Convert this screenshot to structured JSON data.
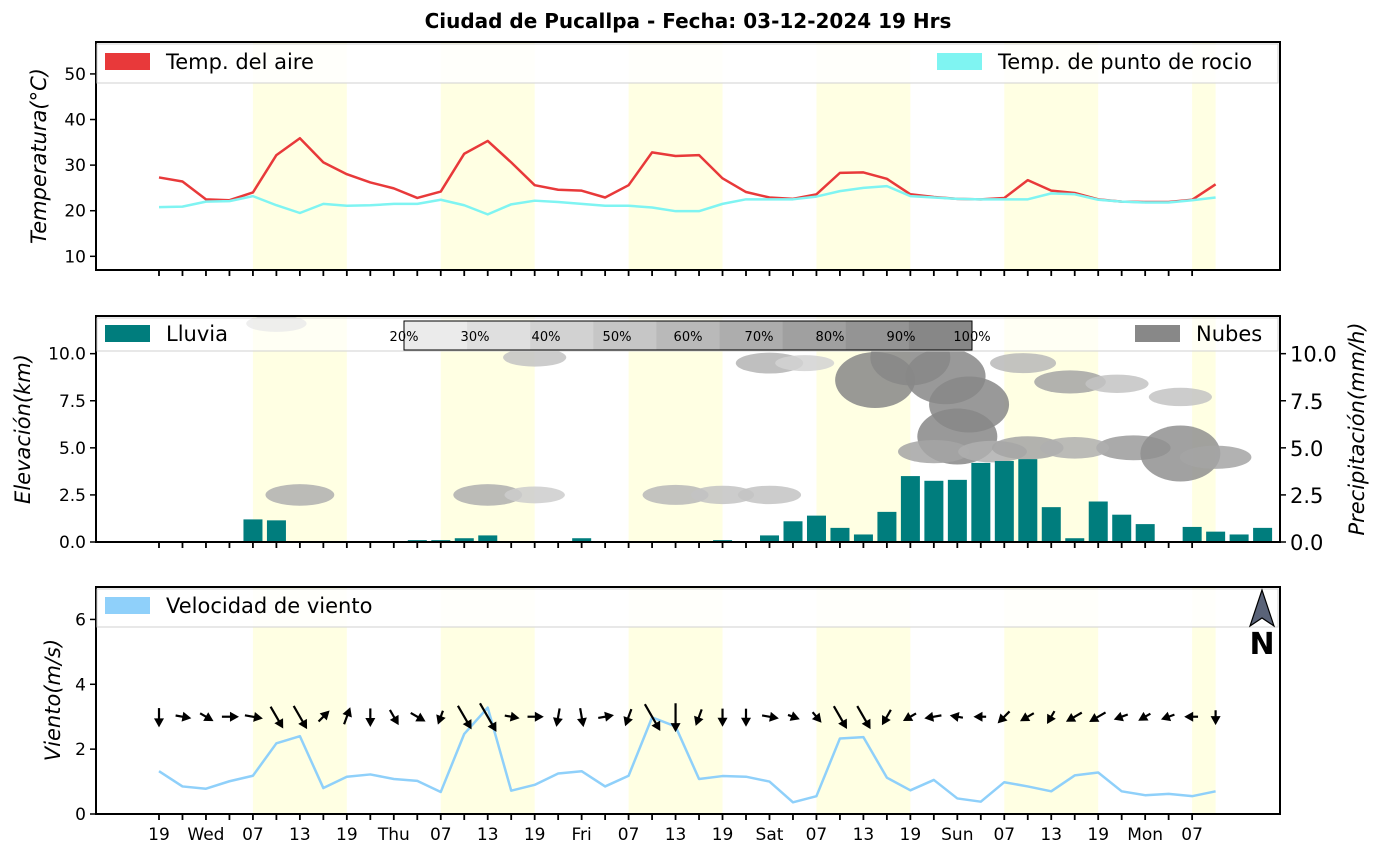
{
  "title": "Ciudad de Pucallpa   -   Fecha: 03-12-2024 19 Hrs",
  "colors": {
    "air_temp": "#e8393a",
    "dew_point": "#7ff4f2",
    "rain": "#007d7d",
    "clouds": "#888888",
    "wind": "#8fd0fa",
    "daylight_band": "#ffffe3",
    "north_arrow": "#5a6378"
  },
  "north_label": "N",
  "chart_data": [
    {
      "type": "line",
      "panel": "temperature",
      "ylabel": "Temperatura(°C)",
      "ylim": [
        7,
        57
      ],
      "yticks": [
        10,
        20,
        30,
        40,
        50
      ],
      "x": [
        0,
        1,
        2,
        3,
        4,
        5,
        6,
        7,
        8,
        9,
        10,
        11,
        12,
        13,
        14,
        15,
        16,
        17,
        18,
        19,
        20,
        21,
        22,
        23,
        24,
        25,
        26,
        27,
        28,
        29,
        30,
        31,
        32,
        33,
        34,
        35,
        36,
        37,
        38,
        39,
        40,
        41,
        42,
        43,
        44,
        45
      ],
      "legend": [
        "Temp. del aire",
        "Temp. de punto de rocio"
      ],
      "series": [
        {
          "name": "Temp. del aire",
          "values": [
            27.3,
            26.4,
            22.5,
            22.3,
            24.0,
            32.2,
            35.9,
            30.6,
            28.0,
            26.2,
            24.9,
            22.8,
            24.2,
            32.5,
            35.3,
            30.6,
            25.6,
            24.6,
            24.4,
            22.9,
            25.6,
            32.8,
            32.0,
            32.2,
            27.1,
            24.1,
            22.9,
            22.6,
            23.6,
            28.3,
            28.4,
            27.0,
            23.6,
            23.0,
            22.6,
            22.5,
            22.8,
            26.7,
            24.4,
            23.9,
            22.5,
            22.0,
            21.9,
            21.9,
            22.4,
            25.8
          ]
        },
        {
          "name": "Temp. de punto de rocio",
          "values": [
            20.8,
            20.9,
            22.0,
            22.1,
            23.2,
            21.2,
            19.5,
            21.5,
            21.1,
            21.2,
            21.5,
            21.5,
            22.4,
            21.2,
            19.2,
            21.4,
            22.2,
            21.9,
            21.5,
            21.1,
            21.1,
            20.7,
            19.9,
            19.9,
            21.5,
            22.5,
            22.5,
            22.5,
            23.1,
            24.3,
            25.0,
            25.4,
            23.2,
            22.9,
            22.6,
            22.5,
            22.5,
            22.5,
            23.8,
            23.6,
            22.4,
            22.0,
            21.8,
            21.8,
            22.3,
            22.9
          ]
        }
      ]
    },
    {
      "type": "bar",
      "panel": "precipitation",
      "ylabel_left": "Elevación(km)",
      "ylabel_right": "Precipitación(mm/h)",
      "ylim": [
        0,
        12
      ],
      "yticks_left": [
        "0.0",
        "2.5",
        "5.0",
        "7.5",
        "10.0"
      ],
      "yticks_right": [
        "0.0",
        "2.5",
        "5.0",
        "7.5",
        "10.0"
      ],
      "legend": [
        "Lluvia",
        "Nubes"
      ],
      "colorbar_labels": [
        "20%",
        "30%",
        "40%",
        "50%",
        "60%",
        "70%",
        "80%",
        "90%",
        "100%"
      ],
      "x": [
        0,
        1,
        2,
        3,
        4,
        5,
        6,
        7,
        8,
        9,
        10,
        11,
        12,
        13,
        14,
        15,
        16,
        17,
        18,
        19,
        20,
        21,
        22,
        23,
        24,
        25,
        26,
        27,
        28,
        29,
        30,
        31,
        32,
        33,
        34,
        35,
        36,
        37,
        38,
        39,
        40,
        41,
        42,
        43,
        44,
        45
      ],
      "values": [
        0.0,
        0.0,
        1.2,
        1.15,
        0.0,
        0.05,
        0.05,
        0.05,
        0.05,
        0.1,
        0.1,
        0.2,
        0.35,
        0.05,
        0.05,
        0.05,
        0.2,
        0.0,
        0.0,
        0.0,
        0.0,
        0.0,
        0.1,
        0.05,
        0.35,
        1.1,
        1.4,
        0.75,
        0.4,
        1.6,
        3.5,
        3.25,
        3.3,
        4.2,
        4.3,
        4.4,
        1.85,
        0.2,
        2.15,
        1.45,
        0.95,
        0.0,
        0.8,
        0.55,
        0.4,
        0.75
      ],
      "clouds": [
        {
          "x": 6,
          "elev": 2.5,
          "cover": 0.6
        },
        {
          "x": 14,
          "elev": 2.5,
          "cover": 0.6
        },
        {
          "x": 16,
          "elev": 2.5,
          "cover": 0.3
        },
        {
          "x": 22,
          "elev": 2.5,
          "cover": 0.5
        },
        {
          "x": 24,
          "elev": 2.5,
          "cover": 0.4
        },
        {
          "x": 26,
          "elev": 2.5,
          "cover": 0.4
        },
        {
          "x": 26,
          "elev": 9.5,
          "cover": 0.55
        },
        {
          "x": 16,
          "elev": 9.8,
          "cover": 0.4
        },
        {
          "x": 27.5,
          "elev": 9.5,
          "cover": 0.25
        },
        {
          "x": 30.5,
          "elev": 8.6,
          "cover": 1.0
        },
        {
          "x": 32,
          "elev": 9.8,
          "cover": 1.0
        },
        {
          "x": 33.5,
          "elev": 8.8,
          "cover": 1.0
        },
        {
          "x": 34.5,
          "elev": 7.3,
          "cover": 1.0
        },
        {
          "x": 34,
          "elev": 5.6,
          "cover": 1.0
        },
        {
          "x": 33,
          "elev": 4.8,
          "cover": 0.7
        },
        {
          "x": 35.5,
          "elev": 4.8,
          "cover": 0.6
        },
        {
          "x": 36.8,
          "elev": 9.5,
          "cover": 0.5
        },
        {
          "x": 37,
          "elev": 5.0,
          "cover": 0.7
        },
        {
          "x": 38.8,
          "elev": 8.5,
          "cover": 0.7
        },
        {
          "x": 40.8,
          "elev": 8.4,
          "cover": 0.4
        },
        {
          "x": 41.5,
          "elev": 5.0,
          "cover": 0.8
        },
        {
          "x": 43.5,
          "elev": 4.7,
          "cover": 0.9
        },
        {
          "x": 45,
          "elev": 4.5,
          "cover": 0.7
        },
        {
          "x": 43.5,
          "elev": 7.7,
          "cover": 0.4
        },
        {
          "x": 39,
          "elev": 5.0,
          "cover": 0.6
        },
        {
          "x": 5,
          "elev": 11.6,
          "cover": 0.3
        }
      ]
    },
    {
      "type": "line",
      "panel": "wind",
      "ylabel": "Viento(m/s)",
      "ylim": [
        0,
        7
      ],
      "yticks": [
        0,
        2,
        4,
        6
      ],
      "legend": [
        "Velocidad de viento"
      ],
      "x": [
        0,
        1,
        2,
        3,
        4,
        5,
        6,
        7,
        8,
        9,
        10,
        11,
        12,
        13,
        14,
        15,
        16,
        17,
        18,
        19,
        20,
        21,
        22,
        23,
        24,
        25,
        26,
        27,
        28,
        29,
        30,
        31,
        32,
        33,
        34,
        35,
        36,
        37,
        38,
        39,
        40,
        41,
        42,
        43,
        44,
        45
      ],
      "series": [
        {
          "name": "Velocidad de viento",
          "values": [
            1.32,
            0.85,
            0.78,
            1.01,
            1.18,
            2.18,
            2.4,
            0.8,
            1.15,
            1.22,
            1.08,
            1.02,
            0.68,
            2.47,
            3.28,
            0.72,
            0.9,
            1.25,
            1.32,
            0.85,
            1.18,
            2.98,
            2.7,
            1.08,
            1.17,
            1.15,
            1.0,
            0.36,
            0.55,
            2.33,
            2.37,
            1.12,
            0.73,
            1.05,
            0.48,
            0.38,
            0.98,
            0.85,
            0.7,
            1.19,
            1.28,
            0.7,
            0.58,
            0.62,
            0.55,
            0.7
          ]
        }
      ],
      "wind_dir_deg": [
        0,
        280,
        300,
        270,
        280,
        330,
        330,
        225,
        200,
        0,
        330,
        300,
        20,
        330,
        330,
        280,
        270,
        10,
        350,
        260,
        20,
        330,
        0,
        20,
        0,
        0,
        280,
        290,
        320,
        330,
        330,
        30,
        60,
        80,
        100,
        90,
        45,
        60,
        30,
        60,
        60,
        70,
        60,
        70,
        90,
        0
      ]
    }
  ],
  "x_axis": {
    "tick_labels": [
      "19",
      "Wed",
      "07",
      "13",
      "19",
      "Thu",
      "07",
      "13",
      "19",
      "Fri",
      "07",
      "13",
      "19",
      "Sat",
      "07",
      "13",
      "19",
      "Sun",
      "07",
      "13",
      "19",
      "Mon",
      "07"
    ],
    "daylight_bands": [
      [
        4,
        8
      ],
      [
        12,
        16
      ],
      [
        20,
        24
      ],
      [
        28,
        32
      ],
      [
        36,
        40
      ],
      [
        44,
        45
      ]
    ]
  }
}
